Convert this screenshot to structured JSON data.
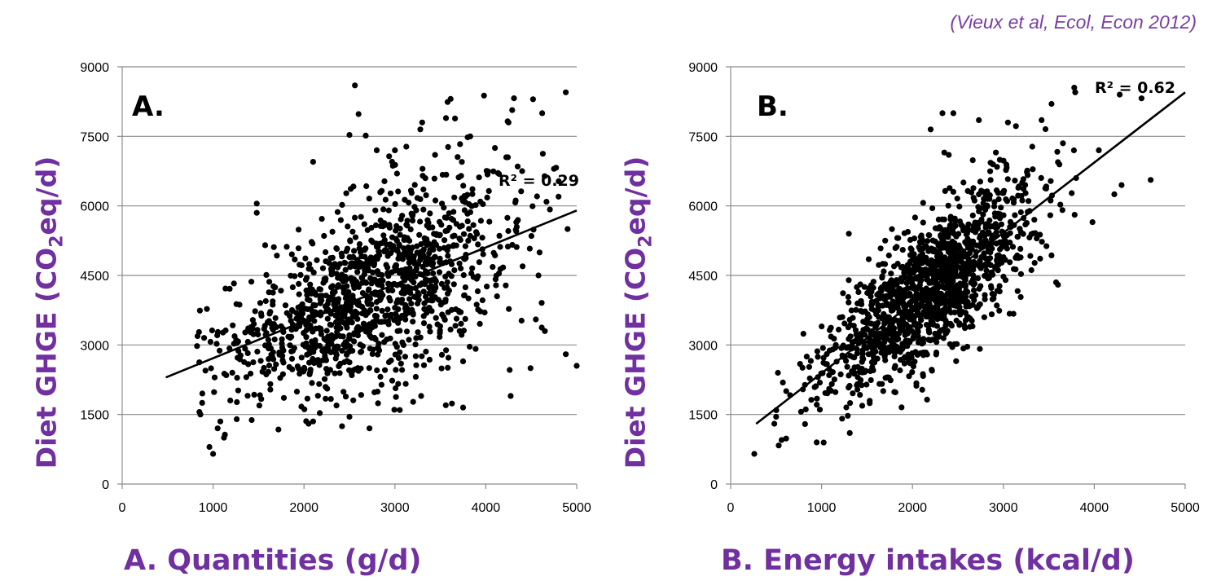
{
  "citation": "(Vieux et al, Ecol, Econ 2012)",
  "chart_data": [
    {
      "type": "scatter",
      "panel_label": "A.",
      "ylabel_main": "Diet GHGE (CO",
      "ylabel_sub": "2",
      "ylabel_tail": "eq/d)",
      "xlabel": "A. Quantities (g/d)",
      "xlim": [
        0,
        5000
      ],
      "ylim": [
        0,
        9000
      ],
      "xticks": [
        0,
        1000,
        2000,
        3000,
        4000,
        5000
      ],
      "yticks": [
        0,
        1500,
        3000,
        4500,
        6000,
        7500,
        9000
      ],
      "grid": "horizontal",
      "r2_label": "R² = 0.29",
      "trendline": {
        "x": [
          480,
          5000
        ],
        "y": [
          2300,
          5900
        ]
      },
      "cloud": {
        "n": 1250,
        "x_mean": 2700,
        "x_sd": 780,
        "y_intercept": 1900,
        "slope": 0.8,
        "resid_sd": 980,
        "x_min": 800,
        "x_max": 5000,
        "y_min": 600,
        "y_max": 8600,
        "seed": 7
      },
      "points": [
        [
          860,
          1500
        ],
        [
          880,
          1750
        ],
        [
          960,
          800
        ],
        [
          1000,
          650
        ],
        [
          1080,
          1350
        ],
        [
          1050,
          1200
        ],
        [
          1120,
          1000
        ],
        [
          1260,
          1400
        ],
        [
          1480,
          6050
        ],
        [
          1480,
          5850
        ],
        [
          2100,
          6950
        ],
        [
          2560,
          8600
        ],
        [
          2600,
          7980
        ],
        [
          2500,
          7530
        ],
        [
          3980,
          8380
        ],
        [
          4520,
          8300
        ],
        [
          4620,
          8000
        ],
        [
          4880,
          8450
        ],
        [
          3300,
          7800
        ],
        [
          3580,
          8240
        ],
        [
          4880,
          2800
        ],
        [
          5000,
          2550
        ],
        [
          3560,
          1700
        ],
        [
          3750,
          1650
        ],
        [
          2720,
          1200
        ],
        [
          2500,
          1450
        ],
        [
          2050,
          1300
        ],
        [
          2100,
          1350
        ],
        [
          4350,
          6850
        ],
        [
          4400,
          6750
        ],
        [
          4750,
          6800
        ],
        [
          4800,
          6200
        ],
        [
          4900,
          5500
        ],
        [
          4650,
          3300
        ],
        [
          4550,
          3550
        ],
        [
          2800,
          7200
        ],
        [
          3000,
          7200
        ],
        [
          3280,
          7650
        ],
        [
          3800,
          7480
        ],
        [
          4250,
          7800
        ],
        [
          4100,
          7250
        ]
      ]
    },
    {
      "type": "scatter",
      "panel_label": "B.",
      "ylabel_main": "Diet GHGE (CO",
      "ylabel_sub": "2",
      "ylabel_tail": "eq/d)",
      "xlabel": "B. Energy intakes (kcal/d)",
      "xlim": [
        0,
        5000
      ],
      "ylim": [
        0,
        9000
      ],
      "xticks": [
        0,
        1000,
        2000,
        3000,
        4000,
        5000
      ],
      "yticks": [
        0,
        1500,
        3000,
        4500,
        6000,
        7500,
        9000
      ],
      "grid": "horizontal",
      "r2_label": "R² = 0.62",
      "trendline": {
        "x": [
          280,
          5000
        ],
        "y": [
          1300,
          8450
        ]
      },
      "cloud": {
        "n": 1400,
        "x_mean": 2200,
        "x_sd": 560,
        "y_intercept": 880,
        "slope": 1.5,
        "resid_sd": 700,
        "x_min": 250,
        "x_max": 4700,
        "y_min": 600,
        "y_max": 8600,
        "seed": 11
      },
      "points": [
        [
          260,
          650
        ],
        [
          480,
          1300
        ],
        [
          500,
          1450
        ],
        [
          520,
          2400
        ],
        [
          560,
          950
        ],
        [
          610,
          980
        ],
        [
          1310,
          1100
        ],
        [
          1300,
          5400
        ],
        [
          3780,
          8550
        ],
        [
          3790,
          8450
        ],
        [
          4280,
          8400
        ],
        [
          4520,
          8320
        ],
        [
          4620,
          6560
        ],
        [
          4300,
          6450
        ],
        [
          4220,
          6250
        ],
        [
          3600,
          4300
        ],
        [
          3580,
          4350
        ],
        [
          3050,
          7800
        ],
        [
          2450,
          8000
        ],
        [
          2330,
          8000
        ],
        [
          2730,
          7850
        ],
        [
          3420,
          7850
        ],
        [
          3800,
          6600
        ],
        [
          3980,
          5650
        ],
        [
          4050,
          7200
        ],
        [
          2350,
          7150
        ],
        [
          2400,
          7100
        ],
        [
          2200,
          7650
        ],
        [
          1700,
          5250
        ],
        [
          2480,
          2650
        ]
      ]
    }
  ]
}
